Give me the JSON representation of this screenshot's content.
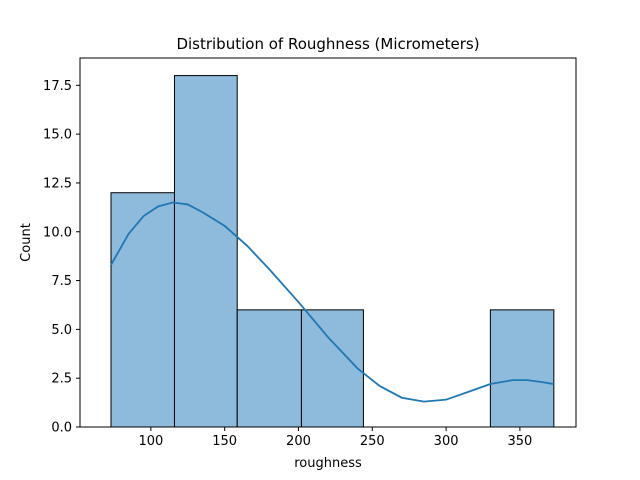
{
  "chart_data": {
    "type": "bar",
    "title": "Distribution of Roughness (Micrometers)",
    "xlabel": "roughness",
    "ylabel": "Count",
    "xlim": [
      52,
      388
    ],
    "ylim": [
      0,
      18.9
    ],
    "x_ticks": [
      100,
      150,
      200,
      250,
      300,
      350
    ],
    "x_tick_labels": [
      "100",
      "150",
      "200",
      "250",
      "300",
      "350"
    ],
    "y_ticks": [
      0.0,
      2.5,
      5.0,
      7.5,
      10.0,
      12.5,
      15.0,
      17.5
    ],
    "y_tick_labels": [
      "0.0",
      "2.5",
      "5.0",
      "7.5",
      "10.0",
      "12.5",
      "15.0",
      "17.5"
    ],
    "bins": [
      {
        "x0": 73,
        "x1": 116,
        "count": 12
      },
      {
        "x0": 116,
        "x1": 158.5,
        "count": 18
      },
      {
        "x0": 158.5,
        "x1": 202,
        "count": 6
      },
      {
        "x0": 202,
        "x1": 244,
        "count": 6
      },
      {
        "x0": 244,
        "x1": 287,
        "count": 0
      },
      {
        "x0": 287,
        "x1": 330,
        "count": 0
      },
      {
        "x0": 330,
        "x1": 373,
        "count": 6
      }
    ],
    "kde": {
      "x": [
        73,
        85,
        95,
        105,
        115,
        125,
        135,
        150,
        165,
        180,
        200,
        220,
        240,
        255,
        270,
        285,
        300,
        315,
        330,
        345,
        355,
        365,
        373
      ],
      "y": [
        8.3,
        9.9,
        10.8,
        11.3,
        11.5,
        11.4,
        11.0,
        10.3,
        9.3,
        8.1,
        6.4,
        4.6,
        3.0,
        2.1,
        1.5,
        1.3,
        1.4,
        1.8,
        2.2,
        2.4,
        2.4,
        2.3,
        2.2
      ]
    },
    "grid": false,
    "colors": {
      "bar_fill": "#8ebadb",
      "bar_edge": "#000000",
      "kde_line": "#1f77b4"
    }
  }
}
